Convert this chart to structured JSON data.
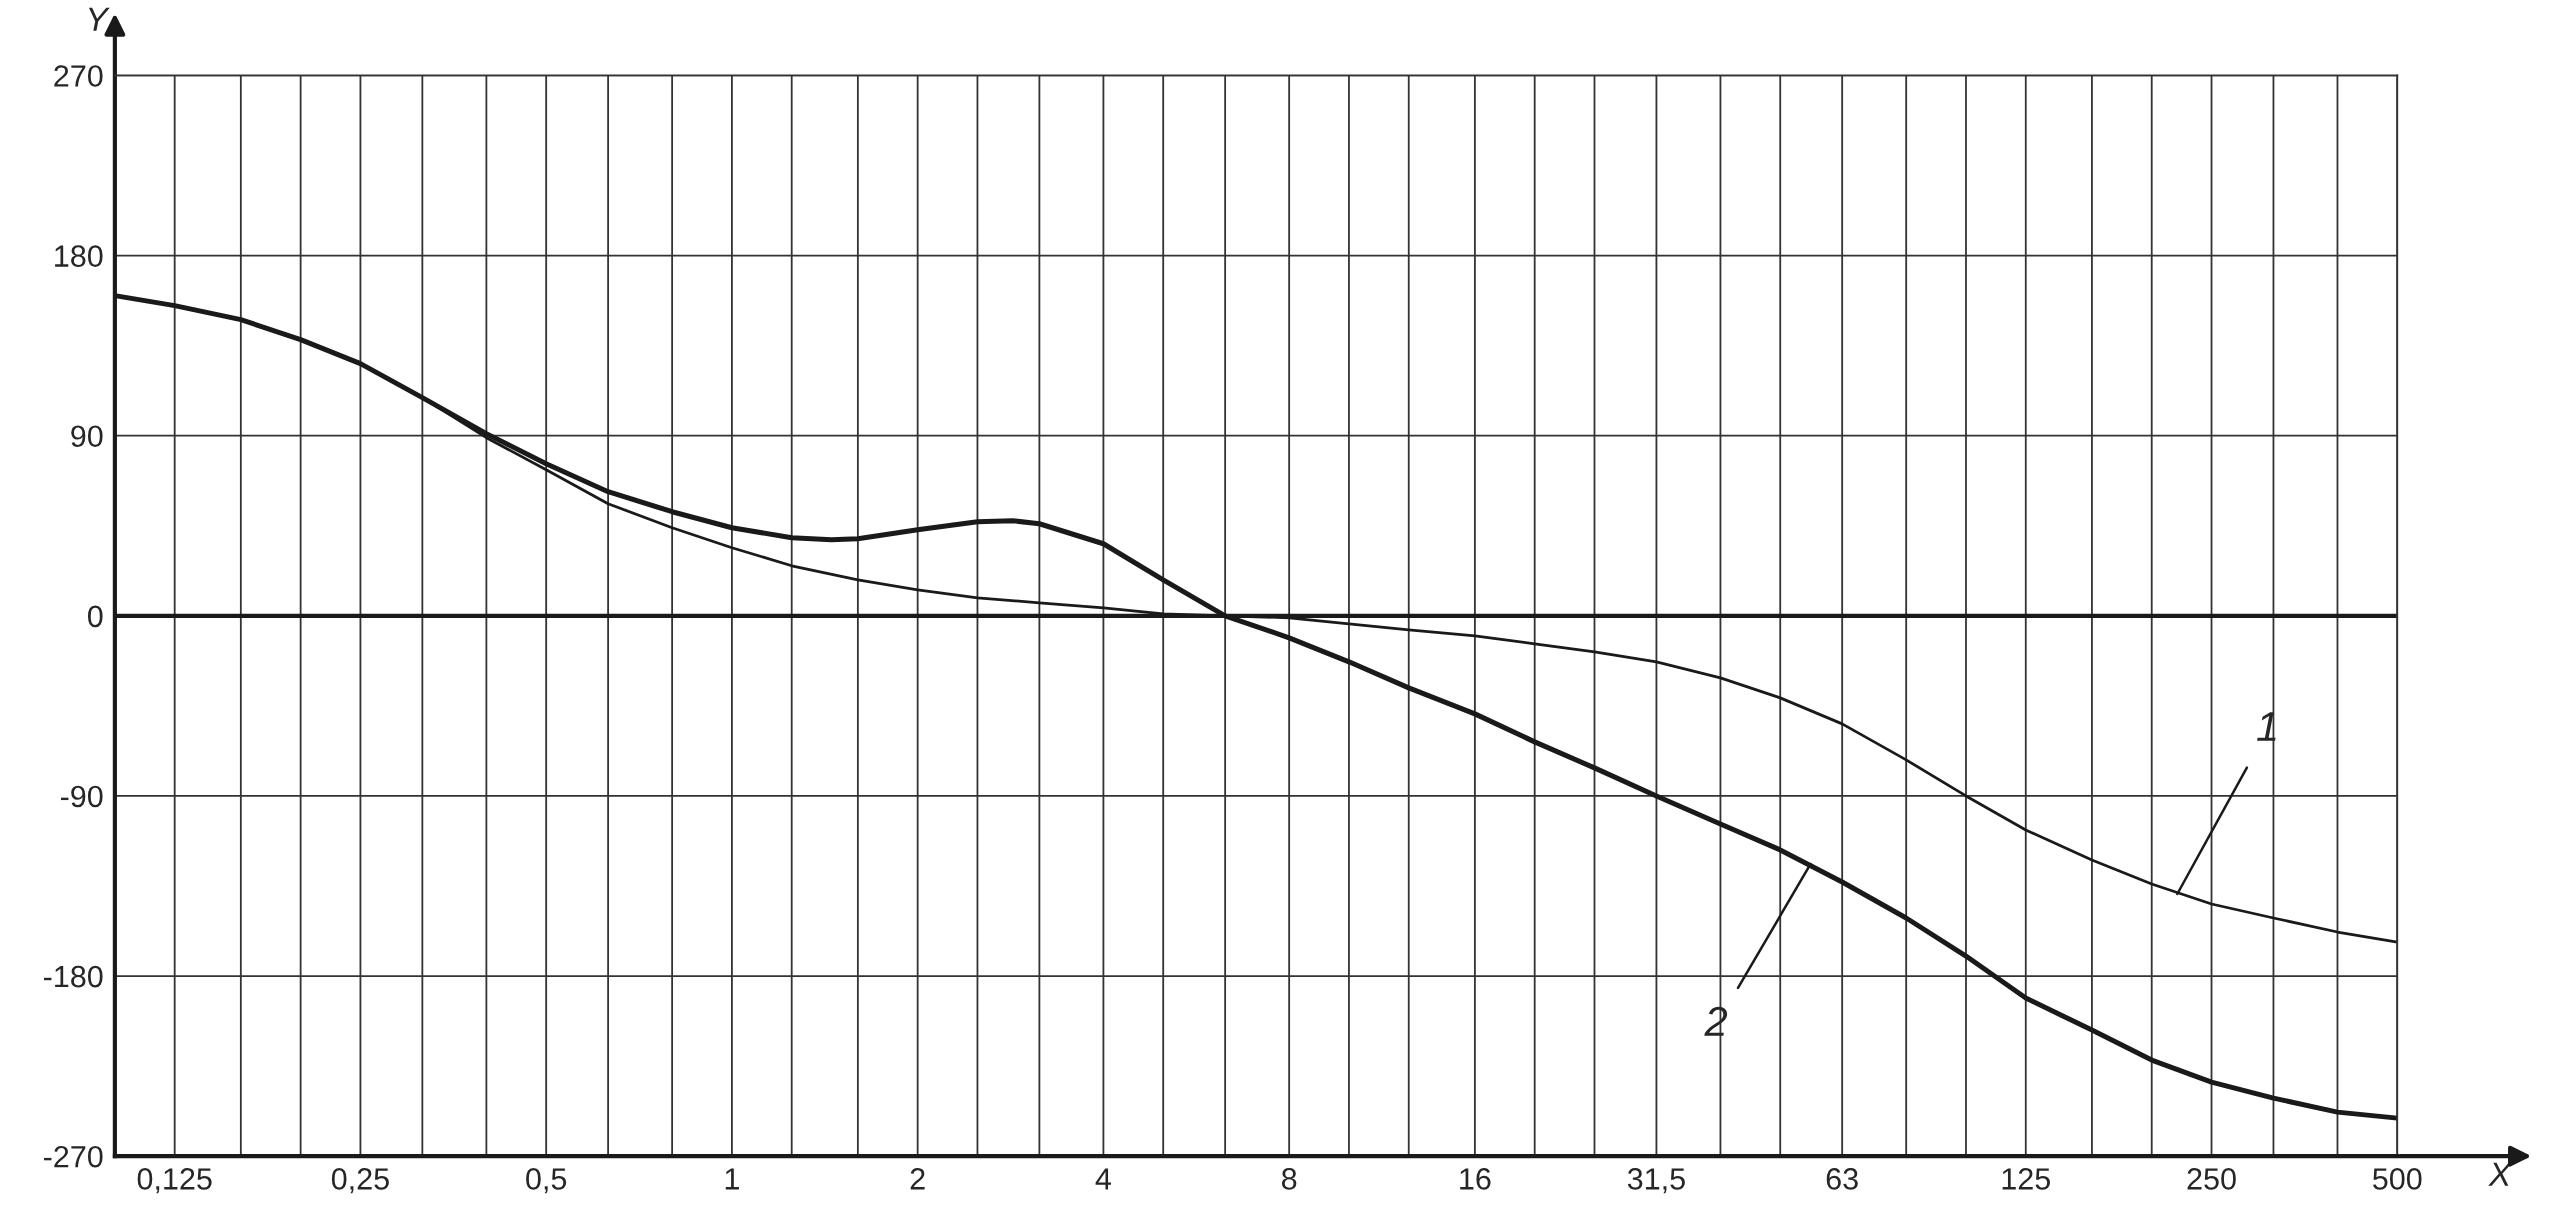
{
  "chart_data": {
    "type": "line",
    "xlabel": "X",
    "ylabel": "Y",
    "log": "x",
    "grid": true,
    "line_style": "solid",
    "marker": "none",
    "xlim": [
      0.1,
      500
    ],
    "ylim": [
      -270,
      270
    ],
    "xticks": [
      {
        "value": 0.125,
        "label": "0,125"
      },
      {
        "value": 0.16,
        "label": null
      },
      {
        "value": 0.2,
        "label": null
      },
      {
        "value": 0.25,
        "label": "0,25"
      },
      {
        "value": 0.315,
        "label": null
      },
      {
        "value": 0.4,
        "label": null
      },
      {
        "value": 0.5,
        "label": "0,5"
      },
      {
        "value": 0.63,
        "label": null
      },
      {
        "value": 0.8,
        "label": null
      },
      1,
      {
        "value": 1.25,
        "label": null
      },
      {
        "value": 1.6,
        "label": null
      },
      2,
      {
        "value": 2.5,
        "label": null
      },
      {
        "value": 3.15,
        "label": null
      },
      4,
      {
        "value": 5,
        "label": null
      },
      {
        "value": 6.3,
        "label": null
      },
      8,
      {
        "value": 10,
        "label": null
      },
      {
        "value": 12.5,
        "label": null
      },
      16,
      {
        "value": 20,
        "label": null
      },
      {
        "value": 25,
        "label": null
      },
      {
        "value": 31.5,
        "label": "31,5"
      },
      {
        "value": 40,
        "label": null
      },
      {
        "value": 50,
        "label": null
      },
      63,
      {
        "value": 80,
        "label": null
      },
      {
        "value": 100,
        "label": null
      },
      125,
      {
        "value": 160,
        "label": null
      },
      {
        "value": 200,
        "label": null
      },
      250,
      {
        "value": 315,
        "label": null
      },
      {
        "value": 400,
        "label": null
      },
      500
    ],
    "yticks": [
      -270,
      -180,
      -90,
      0,
      90,
      180,
      270
    ],
    "ref_lines": [
      {
        "axis": "y",
        "value": 0
      }
    ],
    "series": [
      {
        "color": "#1a1a1a",
        "x": [
          0.1,
          0.125,
          0.16,
          0.2,
          0.25,
          0.315,
          0.4,
          0.5,
          0.63,
          0.8,
          1,
          1.25,
          1.6,
          2,
          2.5,
          3.15,
          4,
          5,
          6.3,
          8,
          10,
          12.5,
          16,
          20,
          25,
          31.5,
          40,
          50,
          63,
          80,
          100,
          125,
          160,
          200,
          250,
          315,
          400,
          500
        ],
        "values": [
          160,
          155,
          148,
          138,
          126,
          109,
          89,
          73,
          56,
          44,
          34,
          25,
          18,
          13,
          9,
          6.5,
          4,
          1,
          0,
          -1,
          -4,
          -7,
          -10,
          -14,
          -18,
          -23,
          -31,
          -41,
          -54,
          -72,
          -90,
          -107,
          -122,
          -134,
          -144,
          -151,
          -158,
          -163
        ]
      },
      {
        "color": "#1a1a1a",
        "x": [
          0.1,
          0.125,
          0.16,
          0.2,
          0.25,
          0.315,
          0.4,
          0.5,
          0.63,
          0.8,
          1,
          1.25,
          1.45,
          1.6,
          2,
          2.5,
          2.85,
          3.15,
          4,
          5,
          6.3,
          8,
          10,
          12.5,
          16,
          20,
          25,
          31.5,
          40,
          50,
          63,
          80,
          100,
          125,
          160,
          200,
          250,
          315,
          400,
          500
        ],
        "values": [
          160,
          155,
          148,
          138,
          126,
          109,
          91,
          76,
          62,
          52,
          44,
          39,
          38,
          38.5,
          43,
          47,
          47.5,
          46,
          36,
          18,
          0,
          -11,
          -23,
          -36,
          -49,
          -63,
          -76,
          -90,
          -104,
          -117,
          -133,
          -151,
          -170,
          -191,
          -207,
          -222,
          -233,
          -241,
          -248,
          -251
        ]
      }
    ],
    "annotations": [
      {
        "text": "1",
        "x": 220,
        "y": -139
      },
      {
        "text": "2",
        "x": 56,
        "y": -124
      }
    ]
  }
}
